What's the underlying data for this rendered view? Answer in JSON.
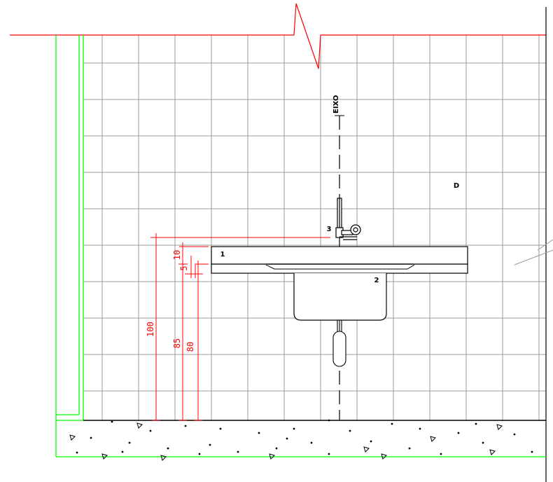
{
  "labels": {
    "axis": "EIXO",
    "zone": "D",
    "item1": "1",
    "item2": "2",
    "item3": "3"
  },
  "dimensions": {
    "d100": "100",
    "d85": "85",
    "d80": "80",
    "d10": "10",
    "d5": "5"
  },
  "colors": {
    "grid": "#9a9a9a",
    "dimension": "#ff0000",
    "structure": "#00ff00",
    "fixture": "#000000"
  }
}
